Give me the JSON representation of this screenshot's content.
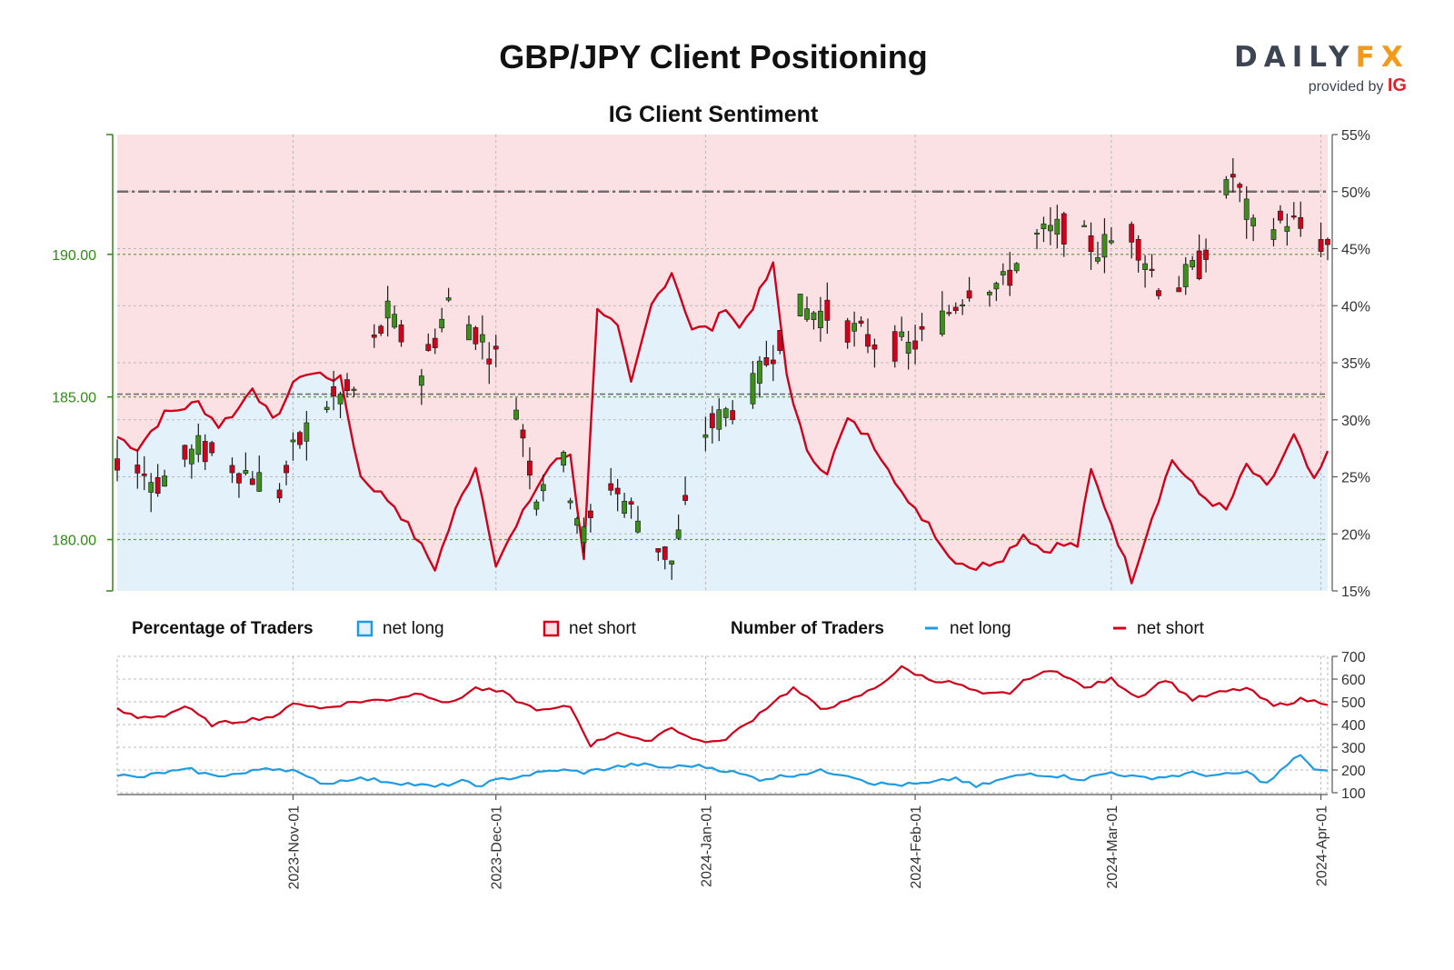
{
  "header": {
    "title": "GBP/JPY Client Positioning",
    "subtitle": "IG Client Sentiment"
  },
  "logo": {
    "brand_left": "DAILY",
    "brand_right": "FX",
    "provided_by": "provided by",
    "ig": "IG"
  },
  "colors": {
    "net_long": "#1e9be2",
    "net_short": "#d0021b",
    "bull_candle": "#3e8e1e",
    "bear_candle": "#d0021b",
    "long_fill": "#e3f1fb",
    "short_fill": "#fbe1e3",
    "price_axis": "#2f8a14"
  },
  "legend": {
    "pct_title": "Percentage of Traders",
    "pct_long": "net long",
    "pct_short": "net short",
    "num_title": "Number of Traders",
    "num_long": "net long",
    "num_short": "net short"
  },
  "chart_data": [
    {
      "type": "candlestick",
      "panel": "top",
      "title": "GBP/JPY Client Positioning",
      "subtitle": "IG Client Sentiment",
      "left_axis": {
        "ticks": [
          "180.00",
          "185.00",
          "190.00"
        ],
        "range": [
          178.2,
          194.2
        ]
      },
      "right_axis": {
        "ticks": [
          "15%",
          "20%",
          "25%",
          "30%",
          "35%",
          "40%",
          "45%",
          "50%",
          "55%"
        ],
        "range": [
          15,
          55
        ]
      },
      "reference_lines": [
        {
          "value": 50,
          "axis": "right",
          "style": "dash-dot"
        },
        {
          "value": 185.1,
          "axis": "left",
          "style": "dashed"
        }
      ],
      "x_ticks": [
        "2023-Nov-01",
        "2023-Dec-01",
        "2024-Jan-01",
        "2024-Feb-01",
        "2024-Mar-01",
        "2024-Apr-01"
      ],
      "x_range": [
        "2023-Oct-06",
        "2024-Apr-02"
      ],
      "price_anchors": [
        [
          "2023-Oct-06",
          182.9
        ],
        [
          "2023-Oct-12",
          182.0
        ],
        [
          "2023-Oct-18",
          183.2
        ],
        [
          "2023-Oct-24",
          182.5
        ],
        [
          "2023-Oct-30",
          181.7
        ],
        [
          "2023-Nov-01",
          183.0
        ],
        [
          "2023-Nov-05",
          184.7
        ],
        [
          "2023-Nov-10",
          185.2
        ],
        [
          "2023-Nov-15",
          187.9
        ],
        [
          "2023-Nov-20",
          185.9
        ],
        [
          "2023-Nov-24",
          188.3
        ],
        [
          "2023-Nov-28",
          187.3
        ],
        [
          "2023-Dec-03",
          185.8
        ],
        [
          "2023-Dec-07",
          181.6
        ],
        [
          "2023-Dec-10",
          183.4
        ],
        [
          "2023-Dec-14",
          180.1
        ],
        [
          "2023-Dec-18",
          182.0
        ],
        [
          "2023-Dec-22",
          180.7
        ],
        [
          "2023-Dec-27",
          179.2
        ],
        [
          "2024-Jan-01",
          183.8
        ],
        [
          "2024-Jan-08",
          185.3
        ],
        [
          "2024-Jan-14",
          188.1
        ],
        [
          "2024-Jan-19",
          187.9
        ],
        [
          "2024-Jan-25",
          187.0
        ],
        [
          "2024-Jan-31",
          186.7
        ],
        [
          "2024-Feb-05",
          187.7
        ],
        [
          "2024-Feb-10",
          189.2
        ],
        [
          "2024-Feb-14",
          188.9
        ],
        [
          "2024-Feb-18",
          190.5
        ],
        [
          "2024-Feb-23",
          190.9
        ],
        [
          "2024-Feb-28",
          190.2
        ],
        [
          "2024-Mar-04",
          190.8
        ],
        [
          "2024-Mar-09",
          188.5
        ],
        [
          "2024-Mar-14",
          189.6
        ],
        [
          "2024-Mar-19",
          192.8
        ],
        [
          "2024-Mar-22",
          190.8
        ],
        [
          "2024-Mar-27",
          191.2
        ],
        [
          "2024-Apr-02",
          190.3
        ]
      ],
      "series": [
        {
          "name": "net long",
          "axis": "right",
          "anchors": [
            [
              "2023-Oct-06",
              28.5
            ],
            [
              "2023-Oct-09",
              27.5
            ],
            [
              "2023-Oct-13",
              30.5
            ],
            [
              "2023-Oct-18",
              31.5
            ],
            [
              "2023-Oct-21",
              29.5
            ],
            [
              "2023-Oct-24",
              31.0
            ],
            [
              "2023-Oct-26",
              33.0
            ],
            [
              "2023-Oct-29",
              29.8
            ],
            [
              "2023-Nov-02",
              34.0
            ],
            [
              "2023-Nov-05",
              34.0
            ],
            [
              "2023-Nov-08",
              33.5
            ],
            [
              "2023-Nov-11",
              25.0
            ],
            [
              "2023-Nov-14",
              23.5
            ],
            [
              "2023-Nov-16",
              22.5
            ],
            [
              "2023-Nov-19",
              19.8
            ],
            [
              "2023-Nov-22",
              17.0
            ],
            [
              "2023-Nov-25",
              22.0
            ],
            [
              "2023-Nov-28",
              26.0
            ],
            [
              "2023-Dec-01",
              17.5
            ],
            [
              "2023-Dec-04",
              20.5
            ],
            [
              "2023-Dec-06",
              23.0
            ],
            [
              "2023-Dec-09",
              26.0
            ],
            [
              "2023-Dec-12",
              27.0
            ],
            [
              "2023-Dec-14",
              18.0
            ],
            [
              "2023-Dec-16",
              40.0
            ],
            [
              "2023-Dec-19",
              38.0
            ],
            [
              "2023-Dec-21",
              33.0
            ],
            [
              "2023-Dec-24",
              40.0
            ],
            [
              "2023-Dec-27",
              43.0
            ],
            [
              "2023-Dec-30",
              38.0
            ],
            [
              "2024-Jan-02",
              38.0
            ],
            [
              "2024-Jan-04",
              40.0
            ],
            [
              "2024-Jan-06",
              38.0
            ],
            [
              "2024-Jan-08",
              40.0
            ],
            [
              "2024-Jan-11",
              43.5
            ],
            [
              "2024-Jan-13",
              34.0
            ],
            [
              "2024-Jan-16",
              27.0
            ],
            [
              "2024-Jan-19",
              25.5
            ],
            [
              "2024-Jan-22",
              30.0
            ],
            [
              "2024-Jan-25",
              28.5
            ],
            [
              "2024-Jan-28",
              26.0
            ],
            [
              "2024-Jan-31",
              22.5
            ],
            [
              "2024-Feb-03",
              21.0
            ],
            [
              "2024-Feb-06",
              18.0
            ],
            [
              "2024-Feb-10",
              17.0
            ],
            [
              "2024-Feb-14",
              18.0
            ],
            [
              "2024-Feb-17",
              20.0
            ],
            [
              "2024-Feb-20",
              18.5
            ],
            [
              "2024-Feb-22",
              19.0
            ],
            [
              "2024-Feb-25",
              19.0
            ],
            [
              "2024-Feb-27",
              25.5
            ],
            [
              "2024-Mar-01",
              21.0
            ],
            [
              "2024-Mar-04",
              16.0
            ],
            [
              "2024-Mar-07",
              21.5
            ],
            [
              "2024-Mar-10",
              26.5
            ],
            [
              "2024-Mar-14",
              23.5
            ],
            [
              "2024-Mar-18",
              22.0
            ],
            [
              "2024-Mar-21",
              26.0
            ],
            [
              "2024-Mar-24",
              24.0
            ],
            [
              "2024-Mar-28",
              28.5
            ],
            [
              "2024-Mar-31",
              24.5
            ],
            [
              "2024-Apr-02",
              27.0
            ]
          ]
        },
        {
          "name": "net short",
          "axis": "right",
          "note_values": "100 minus net long"
        }
      ]
    },
    {
      "type": "line",
      "panel": "bottom",
      "y_ticks": [
        "100",
        "200",
        "300",
        "400",
        "500",
        "600",
        "700"
      ],
      "ylim": [
        100,
        700
      ],
      "series": [
        {
          "name": "net short",
          "anchors": [
            [
              "2023-Oct-06",
              465
            ],
            [
              "2023-Oct-09",
              430
            ],
            [
              "2023-Oct-13",
              440
            ],
            [
              "2023-Oct-16",
              480
            ],
            [
              "2023-Oct-20",
              400
            ],
            [
              "2023-Oct-25",
              420
            ],
            [
              "2023-Oct-30",
              440
            ],
            [
              "2023-Nov-01",
              500
            ],
            [
              "2023-Nov-05",
              470
            ],
            [
              "2023-Nov-10",
              500
            ],
            [
              "2023-Nov-15",
              510
            ],
            [
              "2023-Nov-20",
              540
            ],
            [
              "2023-Nov-24",
              490
            ],
            [
              "2023-Nov-28",
              560
            ],
            [
              "2023-Dec-02",
              540
            ],
            [
              "2023-Dec-05",
              490
            ],
            [
              "2023-Dec-08",
              460
            ],
            [
              "2023-Dec-12",
              480
            ],
            [
              "2023-Dec-15",
              310
            ],
            [
              "2023-Dec-19",
              370
            ],
            [
              "2023-Dec-23",
              320
            ],
            [
              "2023-Dec-27",
              390
            ],
            [
              "2023-Dec-30",
              335
            ],
            [
              "2024-Jan-03",
              320
            ],
            [
              "2024-Jan-07",
              400
            ],
            [
              "2024-Jan-11",
              500
            ],
            [
              "2024-Jan-14",
              560
            ],
            [
              "2024-Jan-18",
              470
            ],
            [
              "2024-Jan-22",
              500
            ],
            [
              "2024-Jan-26",
              560
            ],
            [
              "2024-Jan-30",
              650
            ],
            [
              "2024-Feb-03",
              600
            ],
            [
              "2024-Feb-07",
              580
            ],
            [
              "2024-Feb-11",
              530
            ],
            [
              "2024-Feb-15",
              540
            ],
            [
              "2024-Feb-18",
              610
            ],
            [
              "2024-Feb-22",
              640
            ],
            [
              "2024-Feb-26",
              560
            ],
            [
              "2024-Mar-01",
              600
            ],
            [
              "2024-Mar-05",
              520
            ],
            [
              "2024-Mar-09",
              600
            ],
            [
              "2024-Mar-13",
              510
            ],
            [
              "2024-Mar-17",
              540
            ],
            [
              "2024-Mar-21",
              560
            ],
            [
              "2024-Mar-25",
              480
            ],
            [
              "2024-Mar-29",
              510
            ],
            [
              "2024-Apr-02",
              495
            ]
          ]
        },
        {
          "name": "net long",
          "anchors": [
            [
              "2023-Oct-06",
              180
            ],
            [
              "2023-Oct-09",
              165
            ],
            [
              "2023-Oct-13",
              190
            ],
            [
              "2023-Oct-17",
              200
            ],
            [
              "2023-Oct-20",
              175
            ],
            [
              "2023-Oct-25",
              185
            ],
            [
              "2023-Oct-28",
              210
            ],
            [
              "2023-Nov-01",
              200
            ],
            [
              "2023-Nov-03",
              165
            ],
            [
              "2023-Nov-06",
              140
            ],
            [
              "2023-Nov-10",
              165
            ],
            [
              "2023-Nov-15",
              150
            ],
            [
              "2023-Nov-18",
              140
            ],
            [
              "2023-Nov-22",
              125
            ],
            [
              "2023-Nov-26",
              150
            ],
            [
              "2023-Nov-28",
              130
            ],
            [
              "2023-Dec-02",
              160
            ],
            [
              "2023-Dec-06",
              180
            ],
            [
              "2023-Dec-10",
              200
            ],
            [
              "2023-Dec-14",
              190
            ],
            [
              "2023-Dec-18",
              210
            ],
            [
              "2023-Dec-22",
              225
            ],
            [
              "2023-Dec-26",
              210
            ],
            [
              "2023-Dec-30",
              220
            ],
            [
              "2024-Jan-02",
              210
            ],
            [
              "2024-Jan-05",
              190
            ],
            [
              "2024-Jan-09",
              160
            ],
            [
              "2024-Jan-13",
              175
            ],
            [
              "2024-Jan-18",
              195
            ],
            [
              "2024-Jan-22",
              180
            ],
            [
              "2024-Jan-26",
              140
            ],
            [
              "2024-Jan-30",
              135
            ],
            [
              "2024-Feb-03",
              140
            ],
            [
              "2024-Feb-07",
              165
            ],
            [
              "2024-Feb-10",
              125
            ],
            [
              "2024-Feb-14",
              160
            ],
            [
              "2024-Feb-18",
              185
            ],
            [
              "2024-Feb-22",
              175
            ],
            [
              "2024-Feb-26",
              160
            ],
            [
              "2024-Mar-01",
              190
            ],
            [
              "2024-Mar-05",
              165
            ],
            [
              "2024-Mar-09",
              170
            ],
            [
              "2024-Mar-13",
              185
            ],
            [
              "2024-Mar-17",
              175
            ],
            [
              "2024-Mar-21",
              190
            ],
            [
              "2024-Mar-24",
              140
            ],
            [
              "2024-Mar-27",
              220
            ],
            [
              "2024-Mar-29",
              270
            ],
            [
              "2024-Mar-31",
              200
            ],
            [
              "2024-Apr-02",
              190
            ]
          ]
        }
      ]
    }
  ]
}
